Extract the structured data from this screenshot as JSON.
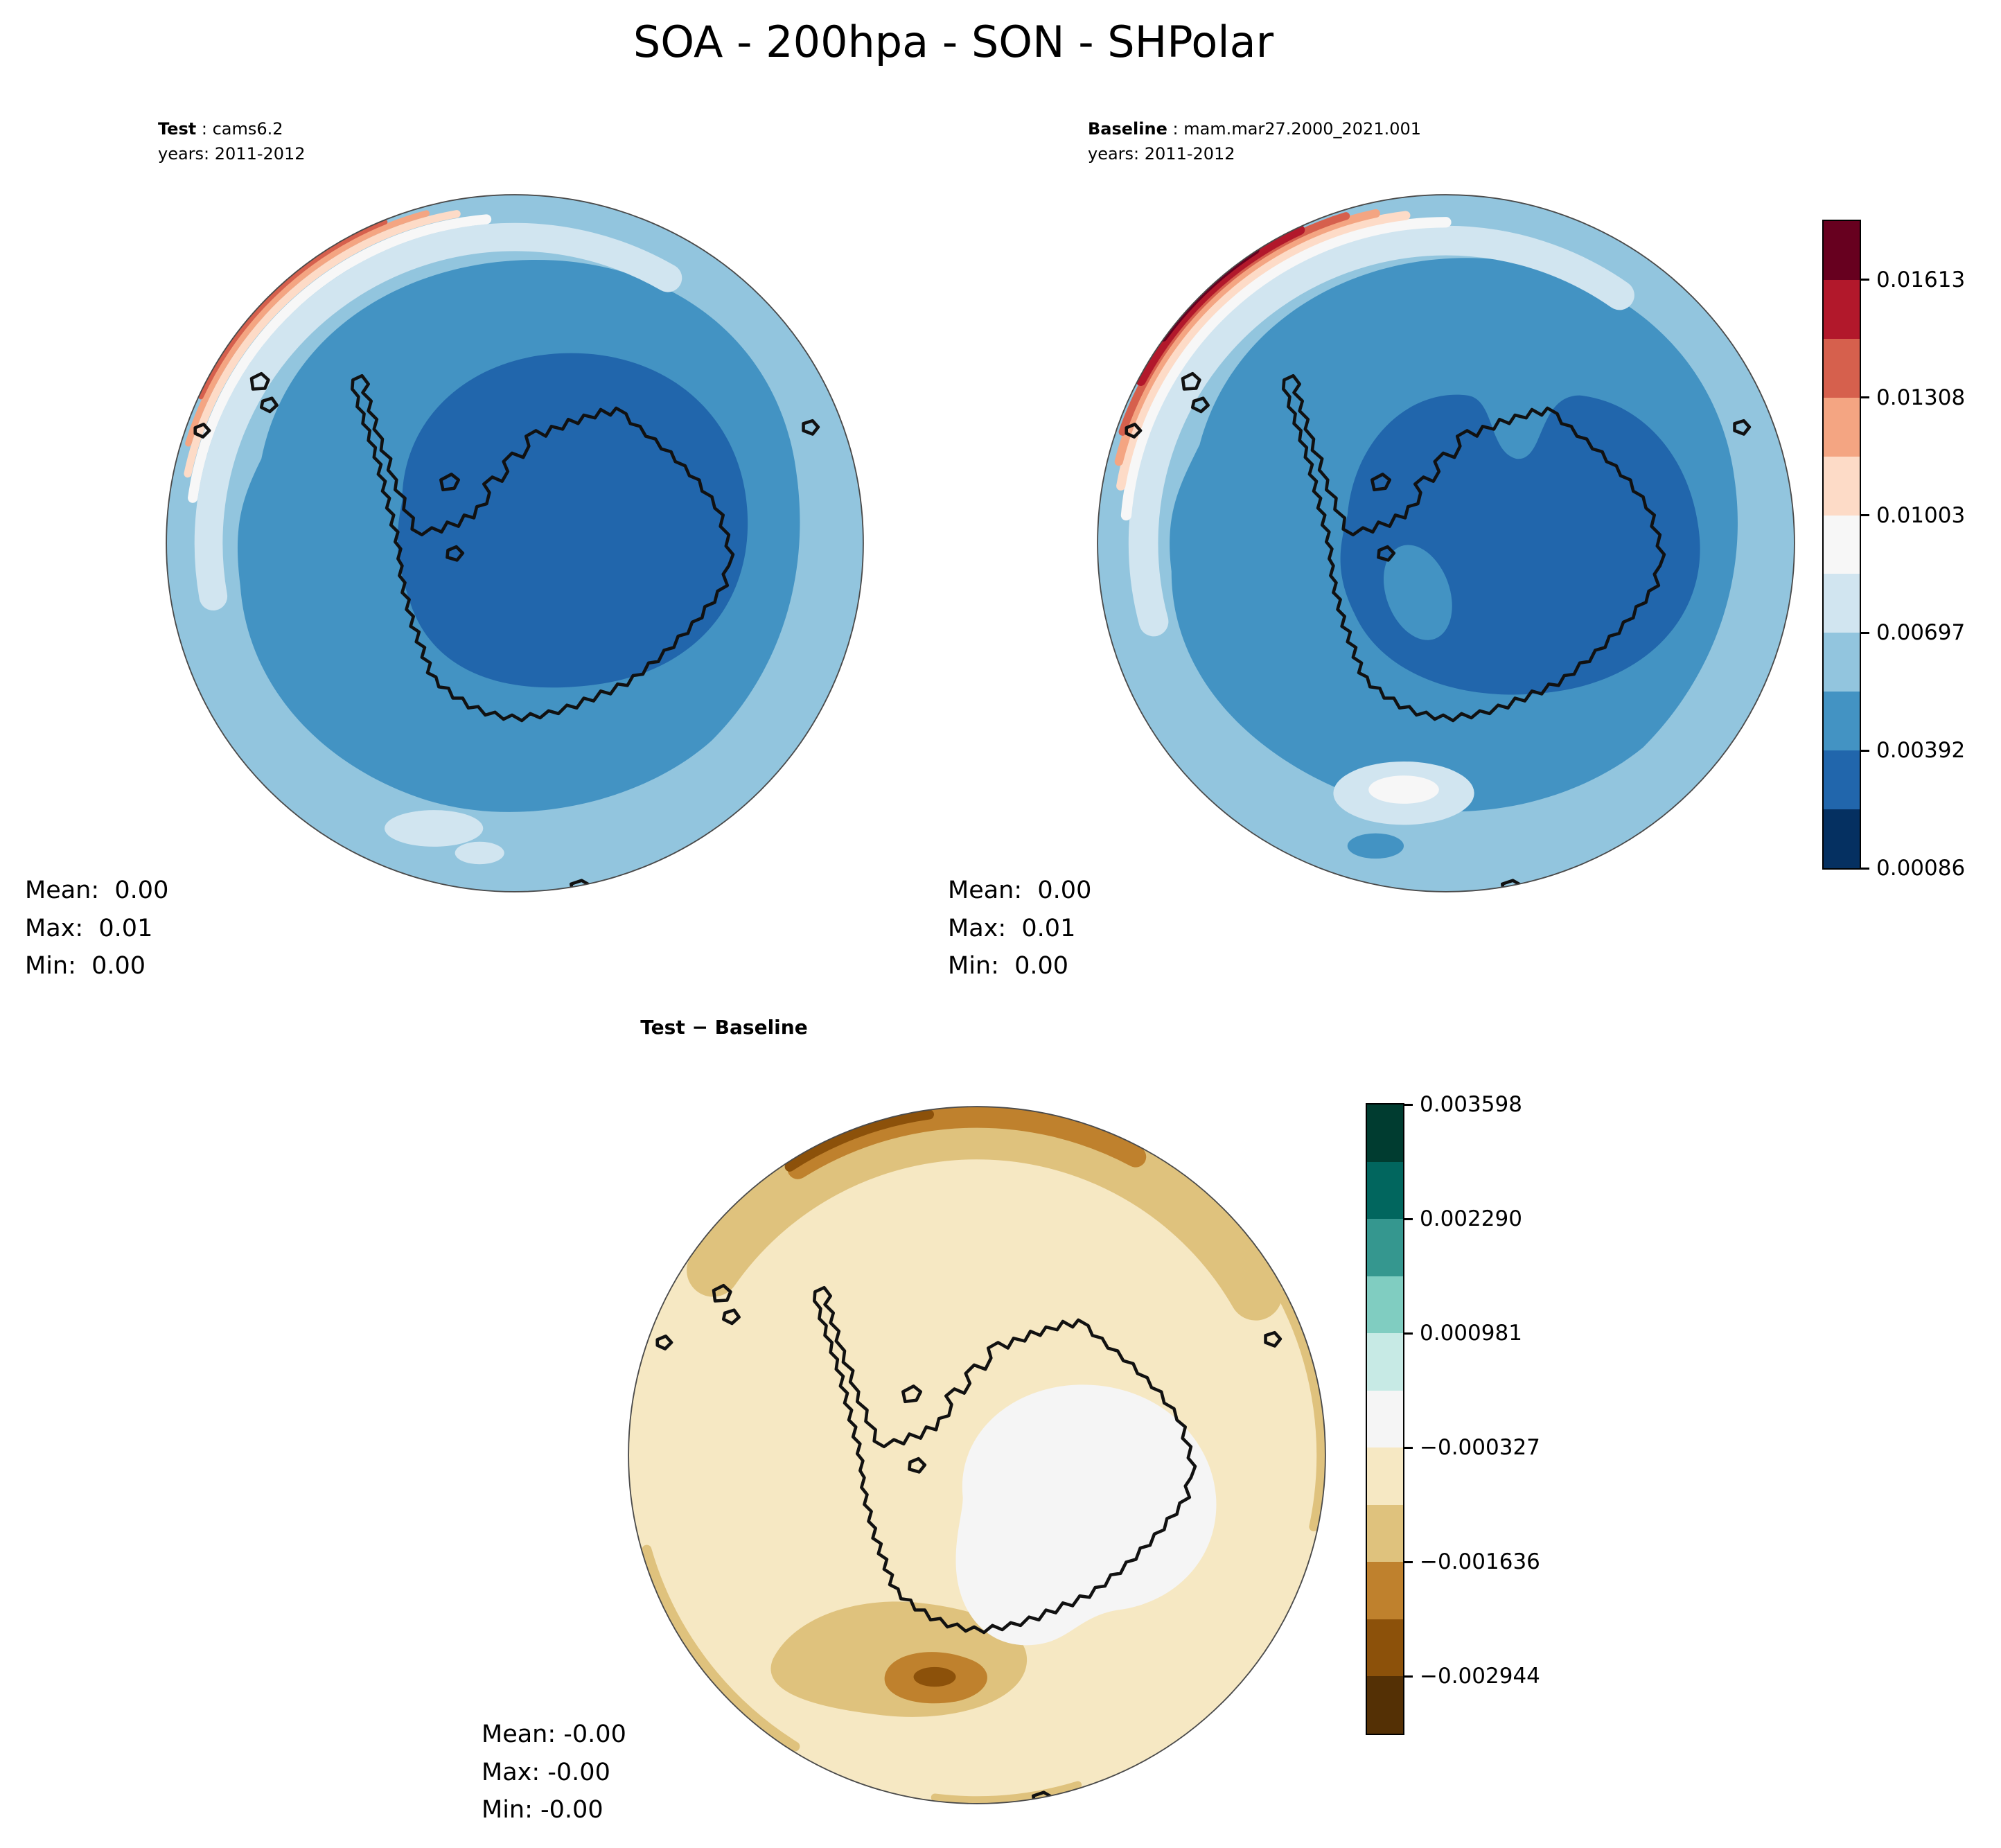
{
  "title": "SOA - 200hpa - SON - SHPolar",
  "panels": {
    "test": {
      "name_bold": "Test",
      "name_rest": " : cams6.2",
      "years": "years: 2011-2012",
      "stats": [
        "Mean:  0.00",
        "Max:  0.01",
        "Min:  0.00"
      ]
    },
    "baseline": {
      "name_bold": "Baseline",
      "name_rest": " : mam.mar27.2000_2021.001",
      "years": "years: 2011-2012",
      "stats": [
        "Mean:  0.00",
        "Max:  0.01",
        "Min:  0.00"
      ]
    },
    "diff": {
      "title": "Test − Baseline",
      "stats": [
        "Mean: -0.00",
        "Max: -0.00",
        "Min: -0.00"
      ]
    }
  },
  "colorbar_main": {
    "ticks": [
      "0.01613",
      "0.01308",
      "0.01003",
      "0.00697",
      "0.00392",
      "0.00086"
    ],
    "colors": [
      "#67001f",
      "#b2182b",
      "#d6604d",
      "#f4a582",
      "#fddbc7",
      "#f7f7f7",
      "#d1e5f0",
      "#92c5de",
      "#4393c3",
      "#2166ac",
      "#053061"
    ]
  },
  "colorbar_diff": {
    "ticks": [
      "0.003598",
      "0.002290",
      "0.000981",
      "−0.000327",
      "−0.001636",
      "−0.002944"
    ],
    "colors": [
      "#003c30",
      "#01665e",
      "#35978f",
      "#80cdc1",
      "#c7eae5",
      "#f5f5f5",
      "#f6e8c3",
      "#dfc27d",
      "#bf812d",
      "#8c510a",
      "#543005"
    ]
  },
  "chart_data": [
    {
      "type": "heatmap",
      "title": "Test : cams6.2",
      "subtitle": "years: 2011-2012",
      "variable": "SOA",
      "level": "200hpa",
      "season": "SON",
      "region": "SHPolar",
      "stats": {
        "mean": 0.0,
        "max": 0.01,
        "min": 0.0
      },
      "colorbar_ticks": [
        0.01613,
        0.01308,
        0.01003,
        0.00697,
        0.00392,
        0.00086
      ],
      "legend_position": "right"
    },
    {
      "type": "heatmap",
      "title": "Baseline : mam.mar27.2000_2021.001",
      "subtitle": "years: 2011-2012",
      "variable": "SOA",
      "level": "200hpa",
      "season": "SON",
      "region": "SHPolar",
      "stats": {
        "mean": 0.0,
        "max": 0.01,
        "min": 0.0
      },
      "colorbar_ticks": [
        0.01613,
        0.01308,
        0.01003,
        0.00697,
        0.00392,
        0.00086
      ],
      "legend_position": "right"
    },
    {
      "type": "heatmap",
      "title": "Test − Baseline",
      "variable": "SOA",
      "level": "200hpa",
      "season": "SON",
      "region": "SHPolar",
      "stats": {
        "mean": -0.0,
        "max": -0.0,
        "min": -0.0
      },
      "colorbar_ticks": [
        0.003598,
        0.00229,
        0.000981,
        -0.000327,
        -0.001636,
        -0.002944
      ],
      "legend_position": "right"
    }
  ]
}
